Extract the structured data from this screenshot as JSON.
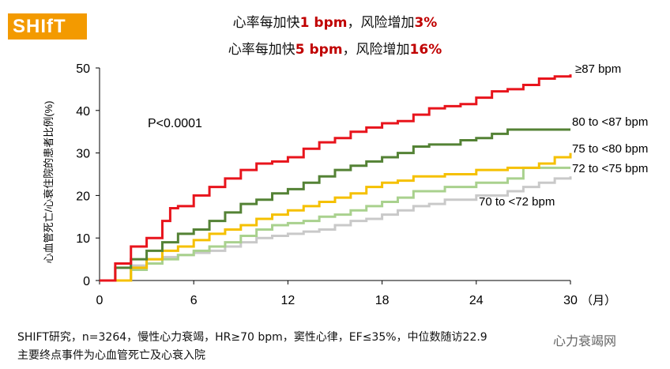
{
  "logo": "SHIfT",
  "headline": [
    {
      "pre": "心率每加快",
      "num": "1 bpm",
      "mid": "，风险增加",
      "pct": "3%"
    },
    {
      "pre": "心率每加快",
      "num": "5 bpm",
      "mid": "，风险增加",
      "pct": "16%"
    }
  ],
  "footnote": [
    "SHIFT研究，n=3264，慢性心力衰竭，HR≥70 bpm，窦性心律，EF≤35%，中位数随访22.9",
    "主要终点事件为心血管死亡及心衰入院"
  ],
  "watermark": "心力衰竭网",
  "chart_data": {
    "type": "line",
    "ylabel": "心血管死亡/心衰住院的患者比例(%)",
    "xlabel": "（月）",
    "xlim": [
      0,
      30
    ],
    "ylim": [
      0,
      50
    ],
    "xticks": [
      0,
      6,
      12,
      18,
      24,
      30
    ],
    "yticks": [
      0,
      10,
      20,
      30,
      40,
      50
    ],
    "annotation": "P<0.0001",
    "series": [
      {
        "name": "≥87 bpm",
        "color": "#e8141c",
        "x": [
          0,
          1,
          2,
          3,
          4,
          4.5,
          5,
          6,
          7,
          8,
          9,
          10,
          11,
          12,
          13,
          14,
          15,
          16,
          17,
          18,
          19,
          20,
          21,
          22,
          23,
          24,
          25,
          26,
          27,
          28,
          29,
          30
        ],
        "y": [
          0,
          4,
          8,
          10,
          14,
          17,
          17.5,
          20,
          22,
          24,
          26,
          27.5,
          28,
          29,
          31,
          32.5,
          33.5,
          35,
          36,
          37,
          37.5,
          39,
          40.5,
          41,
          41.5,
          43,
          44.5,
          45,
          46,
          47.5,
          48,
          48.5
        ]
      },
      {
        "name": "80 to <87 bpm",
        "color": "#548235",
        "x": [
          0,
          1,
          2,
          3,
          4,
          5,
          6,
          7,
          8,
          9,
          10,
          11,
          12,
          13,
          14,
          15,
          16,
          17,
          18,
          19,
          20,
          21,
          22,
          23,
          24,
          25,
          26,
          30
        ],
        "y": [
          0,
          3,
          5,
          7,
          9,
          11,
          12,
          14,
          16,
          18,
          19,
          20.5,
          21.5,
          23,
          24.5,
          26,
          27,
          28,
          29,
          30,
          31.5,
          32,
          32,
          33,
          33.5,
          34.5,
          35.5,
          35.5
        ]
      },
      {
        "name": "75 to <80 bpm",
        "color": "#f5c000",
        "x": [
          0,
          2,
          3,
          4,
          5,
          6,
          7,
          8,
          9,
          10,
          11,
          12,
          13,
          14,
          15,
          16,
          17,
          18,
          19,
          20,
          22,
          24,
          26,
          28,
          29,
          30
        ],
        "y": [
          0,
          3,
          5,
          7,
          8,
          9.5,
          11,
          12,
          13,
          14.5,
          15.5,
          16.5,
          17.5,
          18.5,
          19.5,
          20.5,
          22,
          23,
          23.5,
          24.5,
          25,
          26,
          26.5,
          27.5,
          29,
          30
        ]
      },
      {
        "name": "72 to <75 bpm",
        "color": "#a9d18e",
        "x": [
          0,
          2,
          3,
          4,
          5,
          6,
          7,
          8,
          9,
          10,
          11,
          12,
          13,
          14,
          15,
          16,
          17,
          18,
          19,
          20,
          22,
          24,
          26,
          27,
          30
        ],
        "y": [
          0,
          2.5,
          4,
          5,
          6,
          7,
          8,
          9,
          10.5,
          12,
          13,
          13.5,
          14,
          15,
          15.5,
          16.5,
          17.5,
          18.5,
          19.5,
          21,
          22,
          23,
          24,
          26.5,
          26.5
        ]
      },
      {
        "name": "70 to <72 bpm",
        "color": "#c9c9c9",
        "x": [
          0,
          2,
          3,
          4,
          5,
          6,
          7,
          8,
          9,
          10,
          11,
          12,
          13,
          14,
          15,
          16,
          17,
          18,
          19,
          20,
          21,
          22,
          24,
          26,
          27,
          28,
          29,
          30
        ],
        "y": [
          0,
          3.5,
          5,
          5.5,
          6,
          6.5,
          7,
          8,
          9,
          10,
          10.5,
          11,
          11.5,
          12,
          13,
          14,
          14.5,
          15.5,
          16.5,
          17.5,
          18,
          19,
          20,
          21,
          22,
          23,
          24,
          24.5
        ]
      }
    ]
  }
}
